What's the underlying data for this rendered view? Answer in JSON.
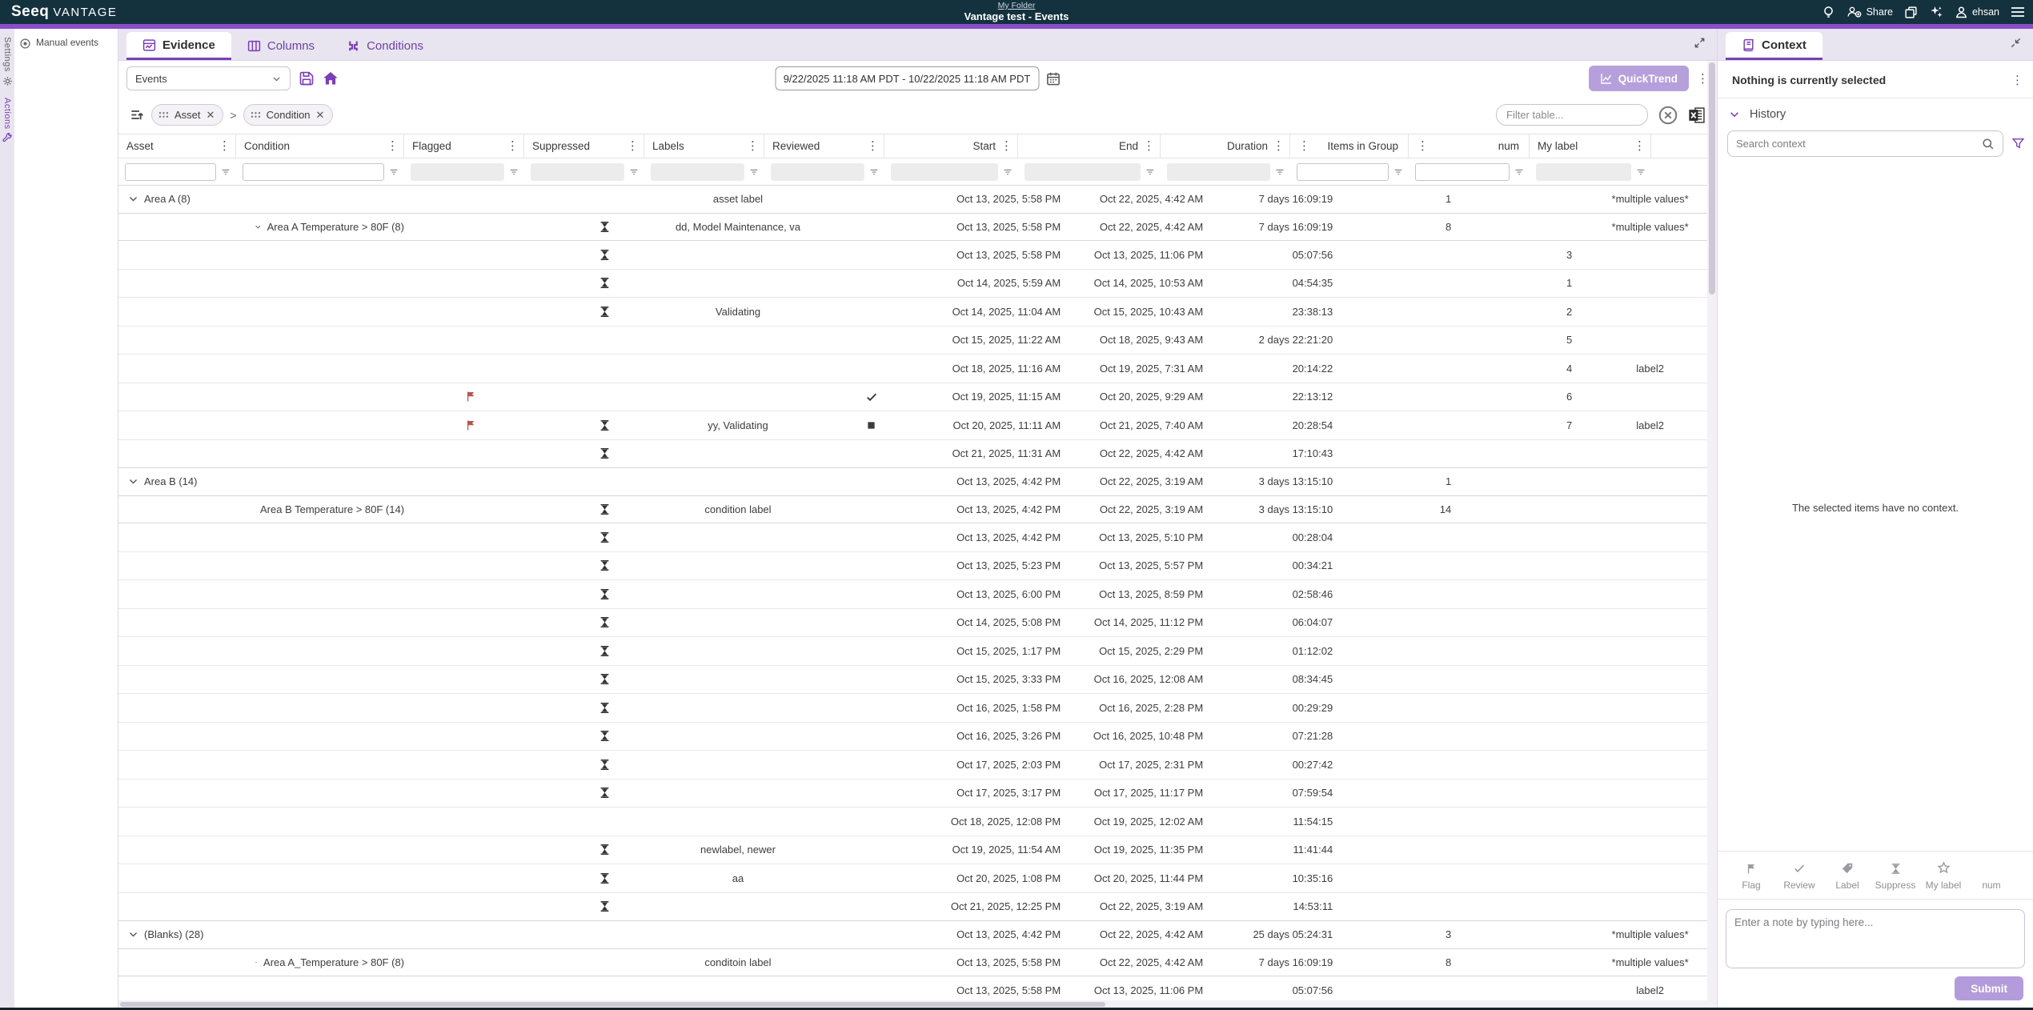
{
  "header": {
    "logo_primary": "Seeq",
    "logo_secondary": "VANTAGE",
    "breadcrumb": "My Folder",
    "title": "Vantage test - Events",
    "share_label": "Share",
    "user_name": "ehsan"
  },
  "rail": {
    "settings": "Settings",
    "actions": "Actions"
  },
  "manual_panel": {
    "label": "Manual events"
  },
  "tabs": {
    "evidence": "Evidence",
    "columns": "Columns",
    "conditions": "Conditions"
  },
  "toolbar": {
    "view_select_value": "Events",
    "date_range_value": "9/22/2025 11:18 AM PDT - 10/22/2025 11:18 AM PDT",
    "quicktrend_label": "QuickTrend"
  },
  "grouping": {
    "separator": ">",
    "chips": [
      {
        "label": "Asset"
      },
      {
        "label": "Condition"
      }
    ]
  },
  "table_filter": {
    "placeholder": "Filter table..."
  },
  "table": {
    "columns": [
      {
        "key": "asset",
        "label": "Asset",
        "filter_enabled": true
      },
      {
        "key": "condition",
        "label": "Condition",
        "filter_enabled": true
      },
      {
        "key": "flagged",
        "label": "Flagged",
        "filter_enabled": false
      },
      {
        "key": "suppressed",
        "label": "Suppressed",
        "filter_enabled": false
      },
      {
        "key": "labels",
        "label": "Labels",
        "filter_enabled": false
      },
      {
        "key": "reviewed",
        "label": "Reviewed",
        "filter_enabled": false
      },
      {
        "key": "start",
        "label": "Start",
        "filter_enabled": false
      },
      {
        "key": "end",
        "label": "End",
        "filter_enabled": false
      },
      {
        "key": "duration",
        "label": "Duration",
        "filter_enabled": false
      },
      {
        "key": "items",
        "label": "Items in Group",
        "filter_enabled": true
      },
      {
        "key": "num",
        "label": "num",
        "filter_enabled": true
      },
      {
        "key": "mylabel",
        "label": "My label",
        "filter_enabled": false
      }
    ],
    "rows": [
      {
        "kind": "group",
        "level": 0,
        "label": "Area A (8)",
        "labels": "asset label",
        "start": "Oct 13, 2025, 5:58 PM",
        "end": "Oct 22, 2025, 4:42 AM",
        "duration": "7 days 16:09:19",
        "items": "1",
        "mylabel": "*multiple values*"
      },
      {
        "kind": "group",
        "level": 1,
        "label": "Area A Temperature > 80F (8)",
        "suppressed": true,
        "labels": "dd, Model Maintenance, va",
        "start": "Oct 13, 2025, 5:58 PM",
        "end": "Oct 22, 2025, 4:42 AM",
        "duration": "7 days 16:09:19",
        "items": "8",
        "mylabel": "*multiple values*"
      },
      {
        "kind": "event",
        "suppressed": true,
        "start": "Oct 13, 2025, 5:58 PM",
        "end": "Oct 13, 2025, 11:06 PM",
        "duration": "05:07:56",
        "num": "3"
      },
      {
        "kind": "event",
        "suppressed": true,
        "start": "Oct 14, 2025, 5:59 AM",
        "end": "Oct 14, 2025, 10:53 AM",
        "duration": "04:54:35",
        "num": "1"
      },
      {
        "kind": "event",
        "suppressed": true,
        "labels": "Validating",
        "start": "Oct 14, 2025, 11:04 AM",
        "end": "Oct 15, 2025, 10:43 AM",
        "duration": "23:38:13",
        "num": "2"
      },
      {
        "kind": "event",
        "start": "Oct 15, 2025, 11:22 AM",
        "end": "Oct 18, 2025, 9:43 AM",
        "duration": "2 days 22:21:20",
        "num": "5"
      },
      {
        "kind": "event",
        "start": "Oct 18, 2025, 11:16 AM",
        "end": "Oct 19, 2025, 7:31 AM",
        "duration": "20:14:22",
        "num": "4",
        "mylabel": "label2"
      },
      {
        "kind": "event",
        "flagged": true,
        "reviewed": "check",
        "start": "Oct 19, 2025, 11:15 AM",
        "end": "Oct 20, 2025, 9:29 AM",
        "duration": "22:13:12",
        "num": "6"
      },
      {
        "kind": "event",
        "flagged": true,
        "suppressed": true,
        "labels": "yy, Validating",
        "reviewed": "square",
        "start": "Oct 20, 2025, 11:11 AM",
        "end": "Oct 21, 2025, 7:40 AM",
        "duration": "20:28:54",
        "num": "7",
        "mylabel": "label2"
      },
      {
        "kind": "event",
        "suppressed": true,
        "start": "Oct 21, 2025, 11:31 AM",
        "end": "Oct 22, 2025, 4:42 AM",
        "duration": "17:10:43"
      },
      {
        "kind": "group",
        "level": 0,
        "label": "Area B (14)",
        "start": "Oct 13, 2025, 4:42 PM",
        "end": "Oct 22, 2025, 3:19 AM",
        "duration": "3 days 13:15:10",
        "items": "1"
      },
      {
        "kind": "group",
        "level": 1,
        "label": "Area B Temperature > 80F (14)",
        "suppressed": true,
        "labels": "condition label",
        "start": "Oct 13, 2025, 4:42 PM",
        "end": "Oct 22, 2025, 3:19 AM",
        "duration": "3 days 13:15:10",
        "items": "14"
      },
      {
        "kind": "event",
        "suppressed": true,
        "start": "Oct 13, 2025, 4:42 PM",
        "end": "Oct 13, 2025, 5:10 PM",
        "duration": "00:28:04"
      },
      {
        "kind": "event",
        "suppressed": true,
        "start": "Oct 13, 2025, 5:23 PM",
        "end": "Oct 13, 2025, 5:57 PM",
        "duration": "00:34:21"
      },
      {
        "kind": "event",
        "suppressed": true,
        "start": "Oct 13, 2025, 6:00 PM",
        "end": "Oct 13, 2025, 8:59 PM",
        "duration": "02:58:46"
      },
      {
        "kind": "event",
        "suppressed": true,
        "start": "Oct 14, 2025, 5:08 PM",
        "end": "Oct 14, 2025, 11:12 PM",
        "duration": "06:04:07"
      },
      {
        "kind": "event",
        "suppressed": true,
        "start": "Oct 15, 2025, 1:17 PM",
        "end": "Oct 15, 2025, 2:29 PM",
        "duration": "01:12:02"
      },
      {
        "kind": "event",
        "suppressed": true,
        "start": "Oct 15, 2025, 3:33 PM",
        "end": "Oct 16, 2025, 12:08 AM",
        "duration": "08:34:45"
      },
      {
        "kind": "event",
        "suppressed": true,
        "start": "Oct 16, 2025, 1:58 PM",
        "end": "Oct 16, 2025, 2:28 PM",
        "duration": "00:29:29"
      },
      {
        "kind": "event",
        "suppressed": true,
        "start": "Oct 16, 2025, 3:26 PM",
        "end": "Oct 16, 2025, 10:48 PM",
        "duration": "07:21:28"
      },
      {
        "kind": "event",
        "suppressed": true,
        "start": "Oct 17, 2025, 2:03 PM",
        "end": "Oct 17, 2025, 2:31 PM",
        "duration": "00:27:42"
      },
      {
        "kind": "event",
        "suppressed": true,
        "start": "Oct 17, 2025, 3:17 PM",
        "end": "Oct 17, 2025, 11:17 PM",
        "duration": "07:59:54"
      },
      {
        "kind": "event",
        "start": "Oct 18, 2025, 12:08 PM",
        "end": "Oct 19, 2025, 12:02 AM",
        "duration": "11:54:15"
      },
      {
        "kind": "event",
        "suppressed": true,
        "labels": "newlabel, newer",
        "start": "Oct 19, 2025, 11:54 AM",
        "end": "Oct 19, 2025, 11:35 PM",
        "duration": "11:41:44"
      },
      {
        "kind": "event",
        "suppressed": true,
        "labels": "aa",
        "start": "Oct 20, 2025, 1:08 PM",
        "end": "Oct 20, 2025, 11:44 PM",
        "duration": "10:35:16"
      },
      {
        "kind": "event",
        "suppressed": true,
        "start": "Oct 21, 2025, 12:25 PM",
        "end": "Oct 22, 2025, 3:19 AM",
        "duration": "14:53:11"
      },
      {
        "kind": "group",
        "level": 0,
        "label": "(Blanks) (28)",
        "start": "Oct 13, 2025, 4:42 PM",
        "end": "Oct 22, 2025, 4:42 AM",
        "duration": "25 days 05:24:31",
        "items": "3",
        "mylabel": "*multiple values*"
      },
      {
        "kind": "group",
        "level": 1,
        "label": "Area A_Temperature > 80F (8)",
        "labels": "conditoin label",
        "start": "Oct 13, 2025, 5:58 PM",
        "end": "Oct 22, 2025, 4:42 AM",
        "duration": "7 days 16:09:19",
        "items": "8",
        "mylabel": "*multiple values*"
      },
      {
        "kind": "event",
        "start": "Oct 13, 2025, 5:58 PM",
        "end": "Oct 13, 2025, 11:06 PM",
        "duration": "05:07:56",
        "mylabel": "label2"
      }
    ]
  },
  "context": {
    "tab_label": "Context",
    "selected_title": "Nothing is currently selected",
    "history_label": "History",
    "search_placeholder": "Search context",
    "empty_message": "The selected items have no context.",
    "actions": [
      {
        "label": "Flag",
        "icon": "flag-icon"
      },
      {
        "label": "Review",
        "icon": "check-icon"
      },
      {
        "label": "Label",
        "icon": "tag-icon"
      },
      {
        "label": "Suppress",
        "icon": "hourglass-icon"
      },
      {
        "label": "My label",
        "icon": "star-icon"
      },
      {
        "label": "num",
        "icon": ""
      }
    ],
    "note_placeholder": "Enter a note by typing here...",
    "submit_label": "Submit"
  }
}
